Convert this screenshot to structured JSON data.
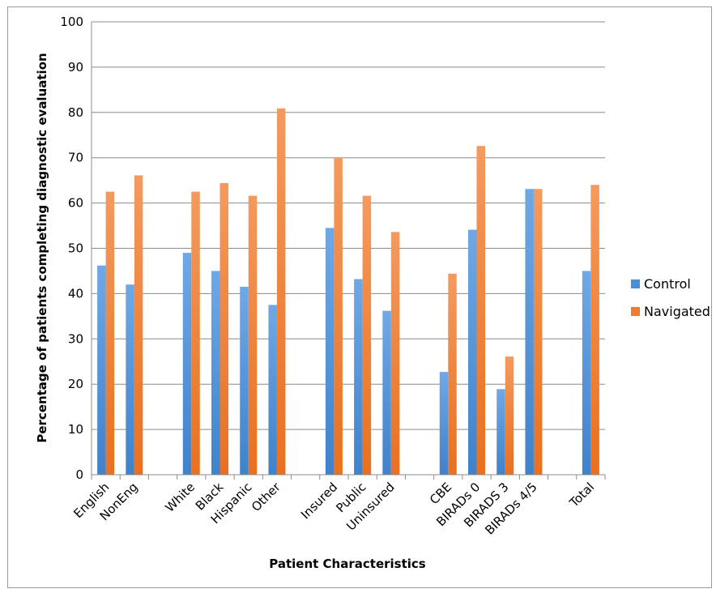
{
  "chart_data": {
    "type": "bar",
    "categories": [
      "English",
      "NonEng",
      "",
      "White",
      "Black",
      "Hispanic",
      "Other",
      "",
      "Insured",
      "Public",
      "Uninsured",
      "",
      "CBE",
      "BIRADs 0",
      "BIRADS 3",
      "BIRADs 4/5",
      "",
      "Total"
    ],
    "series": [
      {
        "name": "Control",
        "color": "#4A8ED6",
        "values": [
          46.2,
          42,
          null,
          49,
          45,
          41.5,
          37.5,
          null,
          54.5,
          43.2,
          36.2,
          null,
          22.7,
          54.1,
          18.9,
          63.1,
          null,
          45
        ]
      },
      {
        "name": "Navigated",
        "color": "#EE7B30",
        "values": [
          62.5,
          66.1,
          null,
          62.5,
          64.4,
          61.6,
          80.9,
          null,
          70,
          61.6,
          53.6,
          null,
          44.4,
          72.6,
          26.1,
          63.1,
          null,
          64
        ]
      }
    ],
    "xlabel": "Patient Characteristics",
    "ylabel": "Percentage of patients completing diagnostic evaluation",
    "ylim": [
      0,
      100
    ],
    "yticks": [
      "0",
      "10",
      "20",
      "30",
      "40",
      "50",
      "60",
      "70",
      "80",
      "90",
      "100"
    ],
    "grid": true,
    "legend": "right"
  }
}
